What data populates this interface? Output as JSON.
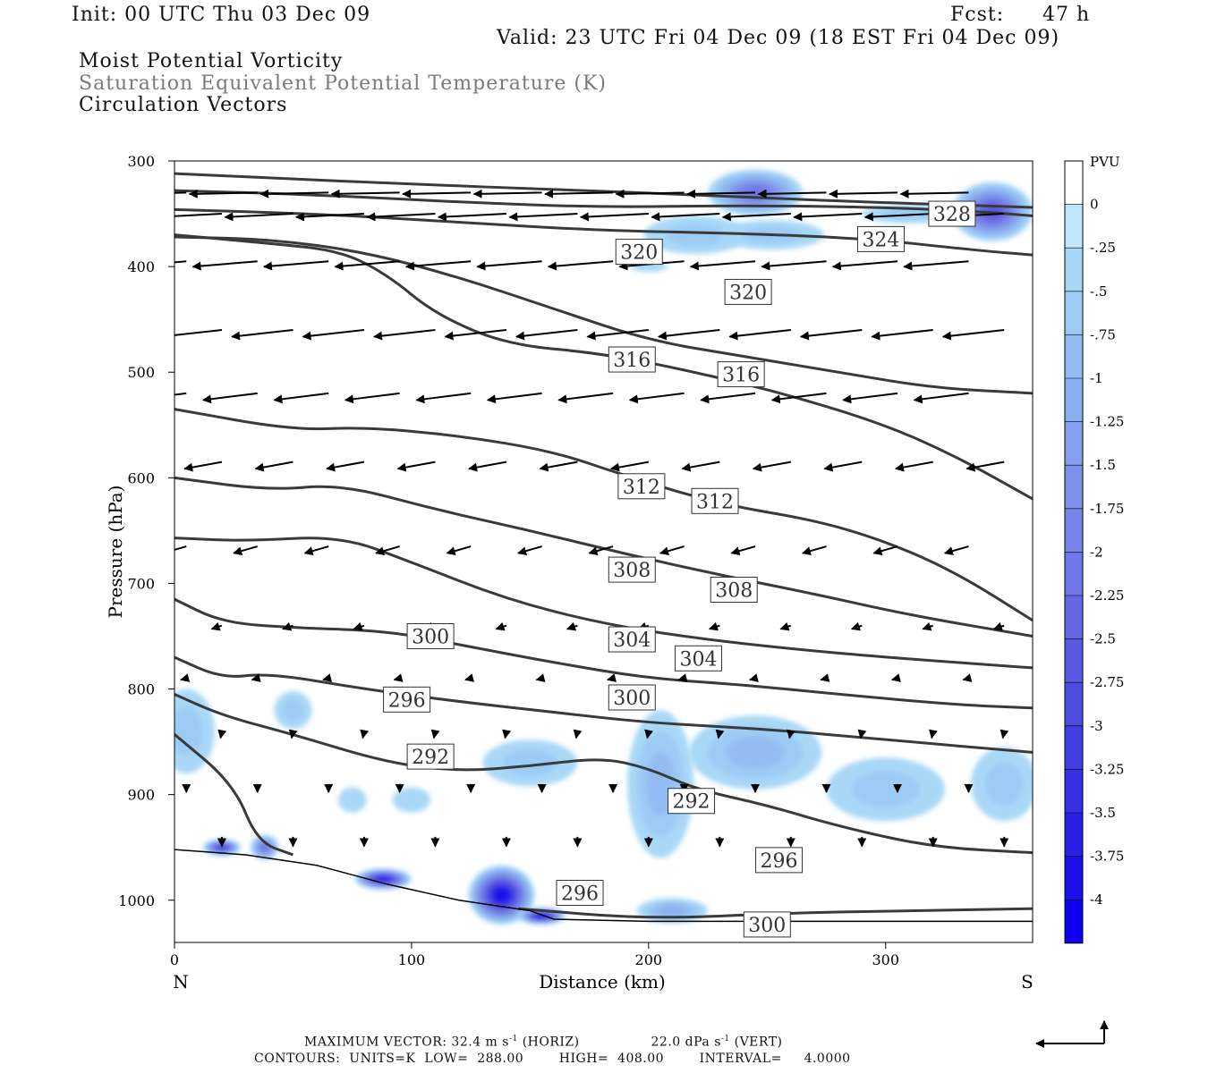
{
  "header": {
    "init": "Init: 00 UTC Thu 03 Dec 09",
    "fcst_label": "Fcst:",
    "fcst_value": "47 h",
    "valid": "Valid: 23 UTC Fri 04 Dec 09 (18 EST Fri 04 Dec 09)",
    "field1": "Moist Potential Vorticity",
    "field2": "Saturation Equivalent Potential Temperature (K)",
    "field3": "Circulation Vectors"
  },
  "chart_data": {
    "type": "contour",
    "xlabel": "Distance (km)",
    "ylabel": "Pressure (hPa)",
    "xlim": [
      0,
      362
    ],
    "ylim": [
      300,
      1040
    ],
    "x_ticks": [
      0,
      100,
      200,
      300
    ],
    "y_ticks": [
      300,
      400,
      500,
      600,
      700,
      800,
      900,
      1000
    ],
    "left_end_label": "N",
    "right_end_label": "S",
    "colorbar": {
      "unit": "PVU",
      "levels": [
        "0",
        "-.25",
        "-.5",
        "-.75",
        "-1",
        "-1.25",
        "-1.5",
        "-1.75",
        "-2",
        "-2.25",
        "-2.5",
        "-2.75",
        "-3",
        "-3.25",
        "-3.5",
        "-3.75",
        "-4"
      ],
      "colors": [
        "#ffffff",
        "#bfe6fb",
        "#a9d8f7",
        "#9ccbf5",
        "#93bdf2",
        "#8cb0ef",
        "#869fec",
        "#7e91ea",
        "#7784e8",
        "#6e77e6",
        "#6468e4",
        "#5a5ae2",
        "#4e4ce2",
        "#423ee2",
        "#3530e4",
        "#2820e6",
        "#1a10ea",
        "#0c00f0"
      ]
    },
    "contours": [
      {
        "label": "308",
        "points": [
          [
            0,
            312
          ],
          [
            40,
            316
          ],
          [
            100,
            322
          ],
          [
            160,
            327
          ],
          [
            220,
            332
          ],
          [
            280,
            338
          ],
          [
            362,
            344
          ]
        ]
      },
      {
        "label": "328",
        "points": [
          [
            0,
            328
          ],
          [
            60,
            332
          ],
          [
            120,
            339
          ],
          [
            180,
            344
          ],
          [
            240,
            342
          ],
          [
            300,
            344
          ],
          [
            340,
            348
          ],
          [
            362,
            352
          ]
        ]
      },
      {
        "label": "324",
        "points": [
          [
            0,
            346
          ],
          [
            60,
            350
          ],
          [
            120,
            358
          ],
          [
            180,
            366
          ],
          [
            230,
            368
          ],
          [
            290,
            373
          ],
          [
            340,
            385
          ],
          [
            362,
            389
          ]
        ]
      },
      {
        "label": "320",
        "points": [
          [
            0,
            372
          ],
          [
            40,
            374
          ],
          [
            80,
            386
          ],
          [
            120,
            410
          ],
          [
            160,
            440
          ],
          [
            200,
            470
          ],
          [
            240,
            485
          ],
          [
            280,
            500
          ],
          [
            320,
            515
          ],
          [
            362,
            520
          ]
        ]
      },
      {
        "label": "316",
        "points": [
          [
            0,
            370
          ],
          [
            40,
            378
          ],
          [
            70,
            385
          ],
          [
            90,
            408
          ],
          [
            110,
            445
          ],
          [
            140,
            474
          ],
          [
            180,
            482
          ],
          [
            220,
            500
          ],
          [
            260,
            522
          ],
          [
            300,
            550
          ],
          [
            330,
            580
          ],
          [
            362,
            620
          ]
        ]
      },
      {
        "label": "312",
        "points": [
          [
            0,
            535
          ],
          [
            50,
            555
          ],
          [
            80,
            552
          ],
          [
            120,
            560
          ],
          [
            160,
            575
          ],
          [
            190,
            598
          ],
          [
            230,
            625
          ],
          [
            270,
            640
          ],
          [
            300,
            660
          ],
          [
            330,
            690
          ],
          [
            362,
            735
          ]
        ]
      },
      {
        "label": "308",
        "points": [
          [
            0,
            600
          ],
          [
            40,
            612
          ],
          [
            70,
            606
          ],
          [
            110,
            630
          ],
          [
            150,
            650
          ],
          [
            190,
            672
          ],
          [
            230,
            692
          ],
          [
            270,
            710
          ],
          [
            310,
            730
          ],
          [
            362,
            750
          ]
        ]
      },
      {
        "label": "304",
        "points": [
          [
            0,
            657
          ],
          [
            30,
            660
          ],
          [
            70,
            655
          ],
          [
            100,
            680
          ],
          [
            140,
            715
          ],
          [
            180,
            738
          ],
          [
            220,
            752
          ],
          [
            260,
            762
          ],
          [
            300,
            770
          ],
          [
            362,
            780
          ]
        ]
      },
      {
        "label": "300",
        "points": [
          [
            0,
            715
          ],
          [
            20,
            737
          ],
          [
            50,
            742
          ],
          [
            90,
            745
          ],
          [
            120,
            758
          ],
          [
            160,
            775
          ],
          [
            200,
            790
          ],
          [
            240,
            796
          ],
          [
            280,
            805
          ],
          [
            330,
            815
          ],
          [
            362,
            818
          ]
        ]
      },
      {
        "label": "296",
        "points": [
          [
            0,
            770
          ],
          [
            20,
            790
          ],
          [
            40,
            785
          ],
          [
            80,
            800
          ],
          [
            120,
            812
          ],
          [
            160,
            822
          ],
          [
            200,
            832
          ],
          [
            250,
            838
          ],
          [
            300,
            848
          ],
          [
            362,
            860
          ]
        ]
      },
      {
        "label": "292",
        "points": [
          [
            0,
            805
          ],
          [
            20,
            825
          ],
          [
            50,
            843
          ],
          [
            90,
            870
          ],
          [
            120,
            878
          ],
          [
            150,
            873
          ],
          [
            180,
            865
          ],
          [
            200,
            875
          ],
          [
            220,
            895
          ],
          [
            250,
            910
          ],
          [
            280,
            930
          ],
          [
            320,
            950
          ],
          [
            362,
            955
          ]
        ]
      },
      {
        "label": "296",
        "points": [
          [
            0,
            843
          ],
          [
            25,
            890
          ],
          [
            35,
            945
          ],
          [
            50,
            957
          ]
        ]
      },
      {
        "label": "300",
        "points": [
          [
            145,
            1008
          ],
          [
            200,
            1018
          ],
          [
            260,
            1012
          ],
          [
            310,
            1010
          ],
          [
            362,
            1008
          ]
        ]
      }
    ],
    "contour_labels": [
      {
        "text": "328",
        "x": 328,
        "y": 350
      },
      {
        "text": "324",
        "x": 298,
        "y": 374
      },
      {
        "text": "320",
        "x": 196,
        "y": 386
      },
      {
        "text": "320",
        "x": 242,
        "y": 424
      },
      {
        "text": "316",
        "x": 193,
        "y": 488
      },
      {
        "text": "316",
        "x": 239,
        "y": 502
      },
      {
        "text": "312",
        "x": 197,
        "y": 608
      },
      {
        "text": "312",
        "x": 228,
        "y": 622
      },
      {
        "text": "308",
        "x": 193,
        "y": 687
      },
      {
        "text": "308",
        "x": 236,
        "y": 706
      },
      {
        "text": "304",
        "x": 193,
        "y": 753
      },
      {
        "text": "304",
        "x": 221,
        "y": 771
      },
      {
        "text": "300",
        "x": 108,
        "y": 750
      },
      {
        "text": "300",
        "x": 193,
        "y": 808
      },
      {
        "text": "296",
        "x": 98,
        "y": 810
      },
      {
        "text": "292",
        "x": 108,
        "y": 864
      },
      {
        "text": "292",
        "x": 218,
        "y": 906
      },
      {
        "text": "296",
        "x": 255,
        "y": 962
      },
      {
        "text": "296",
        "x": 171,
        "y": 993
      },
      {
        "text": "300",
        "x": 250,
        "y": 1023
      }
    ],
    "vectors_rows": [
      {
        "p": 330,
        "u": -1.0,
        "v": 0.02
      },
      {
        "p": 350,
        "u": -1.0,
        "v": 0.05
      },
      {
        "p": 395,
        "u": -0.95,
        "v": 0.08
      },
      {
        "p": 460,
        "u": -0.9,
        "v": 0.1
      },
      {
        "p": 520,
        "u": -0.8,
        "v": 0.1
      },
      {
        "p": 585,
        "u": -0.55,
        "v": 0.1
      },
      {
        "p": 665,
        "u": -0.35,
        "v": 0.1
      },
      {
        "p": 740,
        "u": -0.15,
        "v": 0.05
      },
      {
        "p": 790,
        "u": -0.08,
        "v": 0.02
      },
      {
        "p": 840,
        "u": -0.02,
        "v": 0.1
      },
      {
        "p": 890,
        "u": 0.0,
        "v": 0.12
      },
      {
        "p": 940,
        "u": 0.0,
        "v": 0.14
      }
    ],
    "surface_profile": [
      [
        0,
        952
      ],
      [
        30,
        957
      ],
      [
        60,
        967
      ],
      [
        90,
        985
      ],
      [
        120,
        1000
      ],
      [
        150,
        1010
      ],
      [
        160,
        1018
      ],
      [
        200,
        1020
      ],
      [
        240,
        1020
      ],
      [
        362,
        1020
      ]
    ],
    "pv_blobs": [
      {
        "x": 245,
        "y": 330,
        "rx": 20,
        "ry": 22,
        "val": -2
      },
      {
        "x": 220,
        "y": 370,
        "rx": 22,
        "ry": 18,
        "val": -0.5
      },
      {
        "x": 252,
        "y": 370,
        "rx": 22,
        "ry": 14,
        "val": -0.5
      },
      {
        "x": 345,
        "y": 348,
        "rx": 17,
        "ry": 28,
        "val": -2.5
      },
      {
        "x": 310,
        "y": 350,
        "rx": 20,
        "ry": 9,
        "val": -0.5
      },
      {
        "x": 200,
        "y": 400,
        "rx": 8,
        "ry": 5,
        "val": -0.25
      },
      {
        "x": 5,
        "y": 840,
        "rx": 12,
        "ry": 40,
        "val": -0.5
      },
      {
        "x": 50,
        "y": 820,
        "rx": 8,
        "ry": 18,
        "val": -0.5
      },
      {
        "x": 20,
        "y": 950,
        "rx": 8,
        "ry": 8,
        "val": -3
      },
      {
        "x": 38,
        "y": 950,
        "rx": 6,
        "ry": 12,
        "val": -2
      },
      {
        "x": 88,
        "y": 980,
        "rx": 12,
        "ry": 10,
        "val": -3.5
      },
      {
        "x": 138,
        "y": 995,
        "rx": 14,
        "ry": 28,
        "val": -3.75
      },
      {
        "x": 155,
        "y": 1015,
        "rx": 10,
        "ry": 8,
        "val": -3.75
      },
      {
        "x": 150,
        "y": 870,
        "rx": 20,
        "ry": 22,
        "val": -0.5
      },
      {
        "x": 205,
        "y": 890,
        "rx": 14,
        "ry": 70,
        "val": -0.75
      },
      {
        "x": 210,
        "y": 1010,
        "rx": 15,
        "ry": 12,
        "val": -1
      },
      {
        "x": 245,
        "y": 860,
        "rx": 28,
        "ry": 35,
        "val": -0.75
      },
      {
        "x": 300,
        "y": 895,
        "rx": 25,
        "ry": 30,
        "val": -0.5
      },
      {
        "x": 350,
        "y": 890,
        "rx": 14,
        "ry": 35,
        "val": -0.5
      },
      {
        "x": 75,
        "y": 905,
        "rx": 6,
        "ry": 12,
        "val": -0.25
      },
      {
        "x": 100,
        "y": 905,
        "rx": 8,
        "ry": 12,
        "val": -0.25
      }
    ]
  },
  "footer": {
    "line1_a": "MAXIMUM VECTOR:  32.4 m s",
    "line1_a_sup": "-1",
    "line1_b": " (HORIZ)",
    "line1_c": "22.0 dPa s",
    "line1_c_sup": "-1",
    "line1_d": " (VERT)",
    "line2": "CONTOURS:  UNITS=K  LOW=  288.00        HIGH=  408.00        INTERVAL=     4.0000"
  }
}
